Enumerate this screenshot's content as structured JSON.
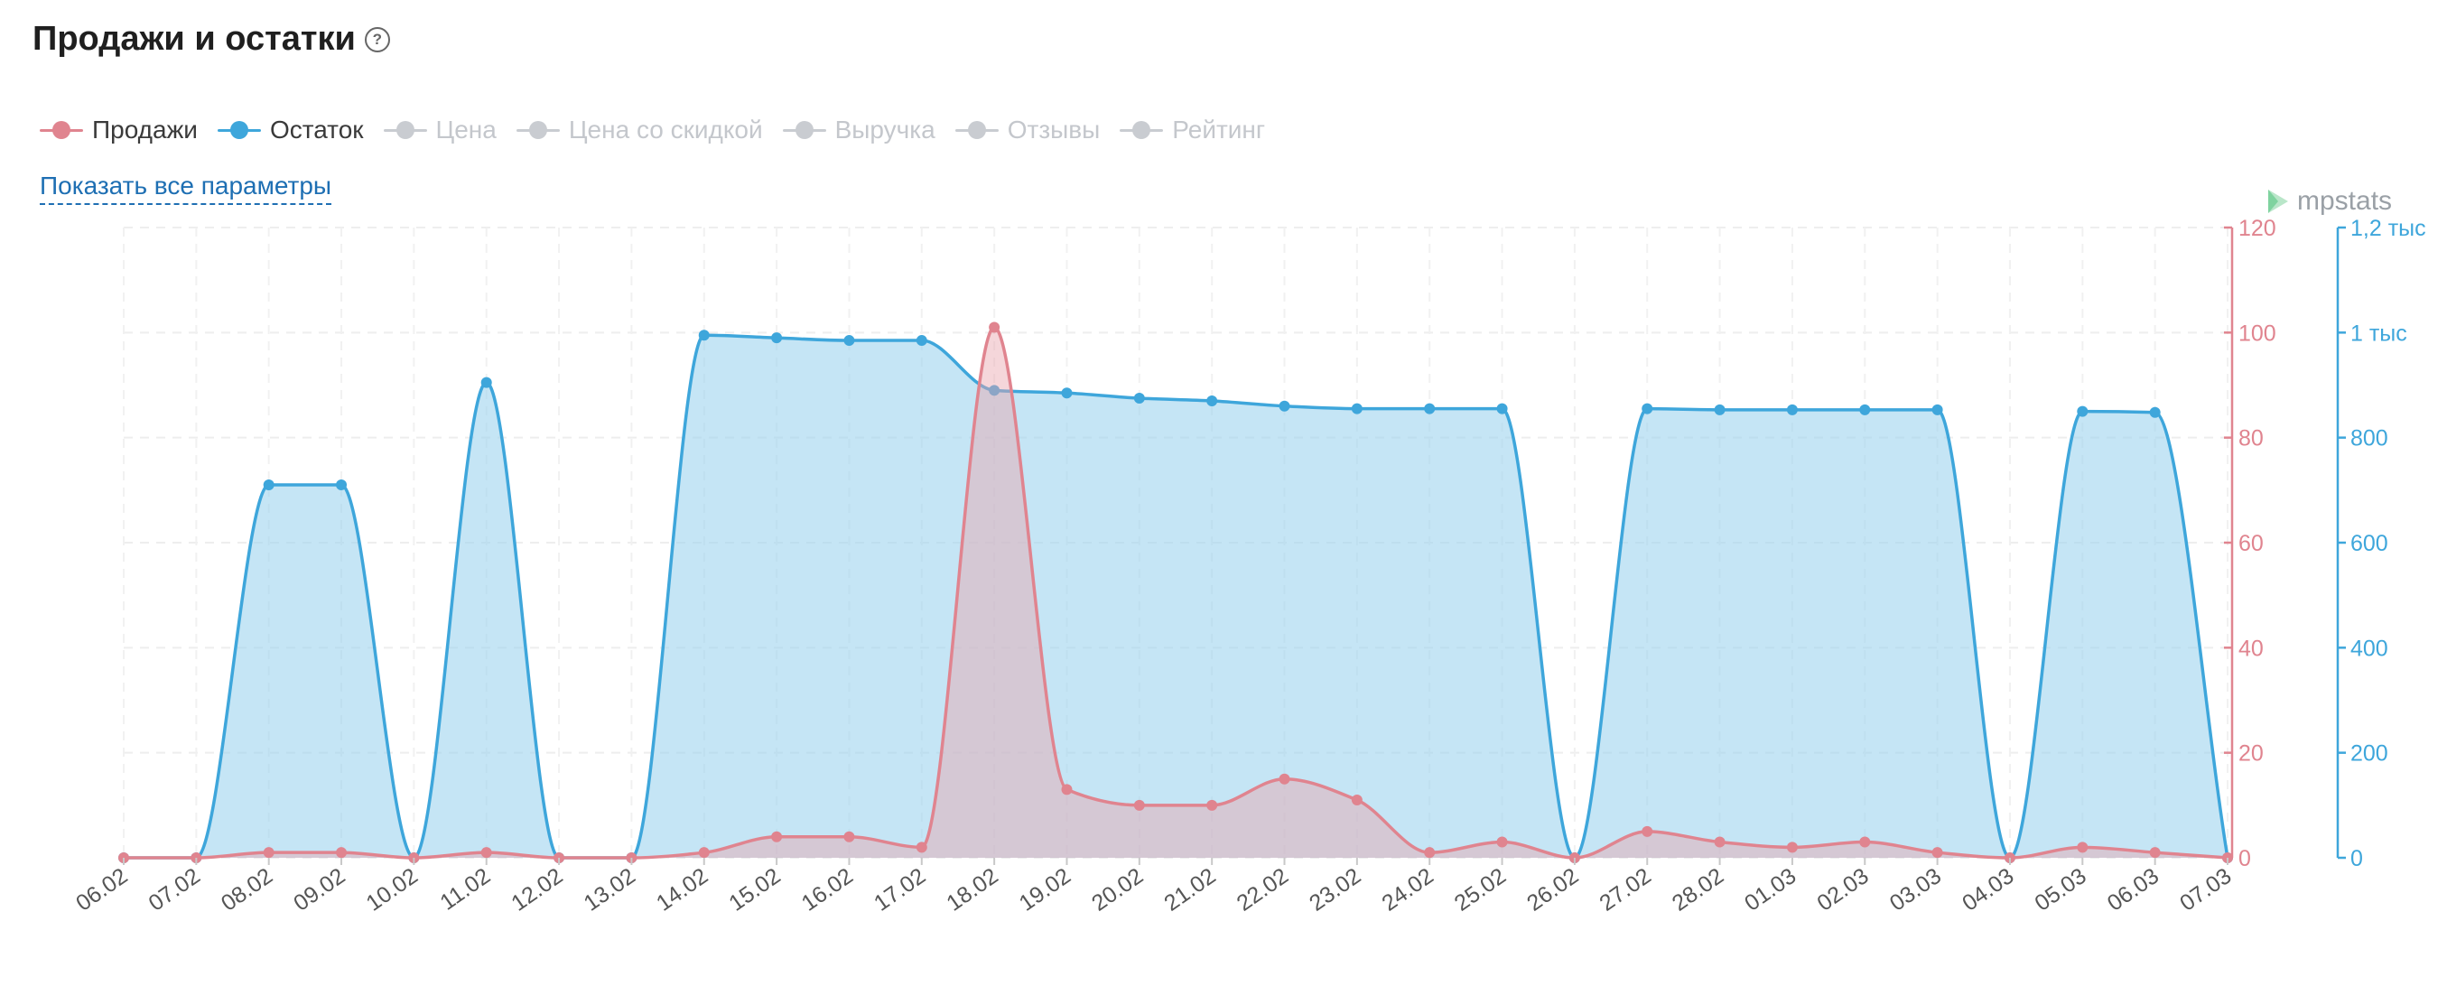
{
  "header": {
    "title": "Продажи и остатки",
    "help_icon": "?"
  },
  "legend": [
    {
      "label": "Продажи",
      "color": "#e0848f",
      "active": true
    },
    {
      "label": "Остаток",
      "color": "#3ea6db",
      "active": true
    },
    {
      "label": "Цена",
      "color": "#c9ccd1",
      "active": false
    },
    {
      "label": "Цена со скидкой",
      "color": "#c9ccd1",
      "active": false
    },
    {
      "label": "Выручка",
      "color": "#c9ccd1",
      "active": false
    },
    {
      "label": "Отзывы",
      "color": "#c9ccd1",
      "active": false
    },
    {
      "label": "Рейтинг",
      "color": "#c9ccd1",
      "active": false
    }
  ],
  "show_all_label": "Показать все параметры",
  "watermark": "mpstats",
  "chart_data": {
    "type": "area",
    "categories": [
      "06.02",
      "07.02",
      "08.02",
      "09.02",
      "10.02",
      "11.02",
      "12.02",
      "13.02",
      "14.02",
      "15.02",
      "16.02",
      "17.02",
      "18.02",
      "19.02",
      "20.02",
      "21.02",
      "22.02",
      "23.02",
      "24.02",
      "25.02",
      "26.02",
      "27.02",
      "28.02",
      "01.03",
      "02.03",
      "03.03",
      "04.03",
      "05.03",
      "06.03",
      "07.03"
    ],
    "series": [
      {
        "name": "Продажи",
        "axis": "left",
        "color": "#e0848f",
        "values": [
          0,
          0,
          1,
          1,
          0,
          1,
          0,
          0,
          1,
          4,
          4,
          2,
          101,
          13,
          10,
          10,
          15,
          11,
          1,
          3,
          0,
          5,
          3,
          2,
          3,
          1,
          0,
          2,
          1,
          0
        ]
      },
      {
        "name": "Остаток",
        "axis": "right",
        "color": "#3ea6db",
        "values": [
          0,
          0,
          710,
          710,
          0,
          905,
          0,
          0,
          995,
          990,
          985,
          985,
          890,
          885,
          875,
          870,
          860,
          855,
          855,
          855,
          0,
          855,
          853,
          853,
          853,
          853,
          0,
          850,
          848,
          0
        ]
      }
    ],
    "left_axis": {
      "ylim": [
        0,
        120
      ],
      "ticks": [
        "0",
        "20",
        "40",
        "60",
        "80",
        "100",
        "120"
      ],
      "color": "#e0848f"
    },
    "right_axis": {
      "ylim": [
        0,
        1200
      ],
      "ticks": [
        "0",
        "200",
        "400",
        "600",
        "800",
        "1 тыс",
        "1,2 тыс"
      ],
      "color": "#3ea6db"
    },
    "grid": true,
    "legend_position": "top-left"
  }
}
